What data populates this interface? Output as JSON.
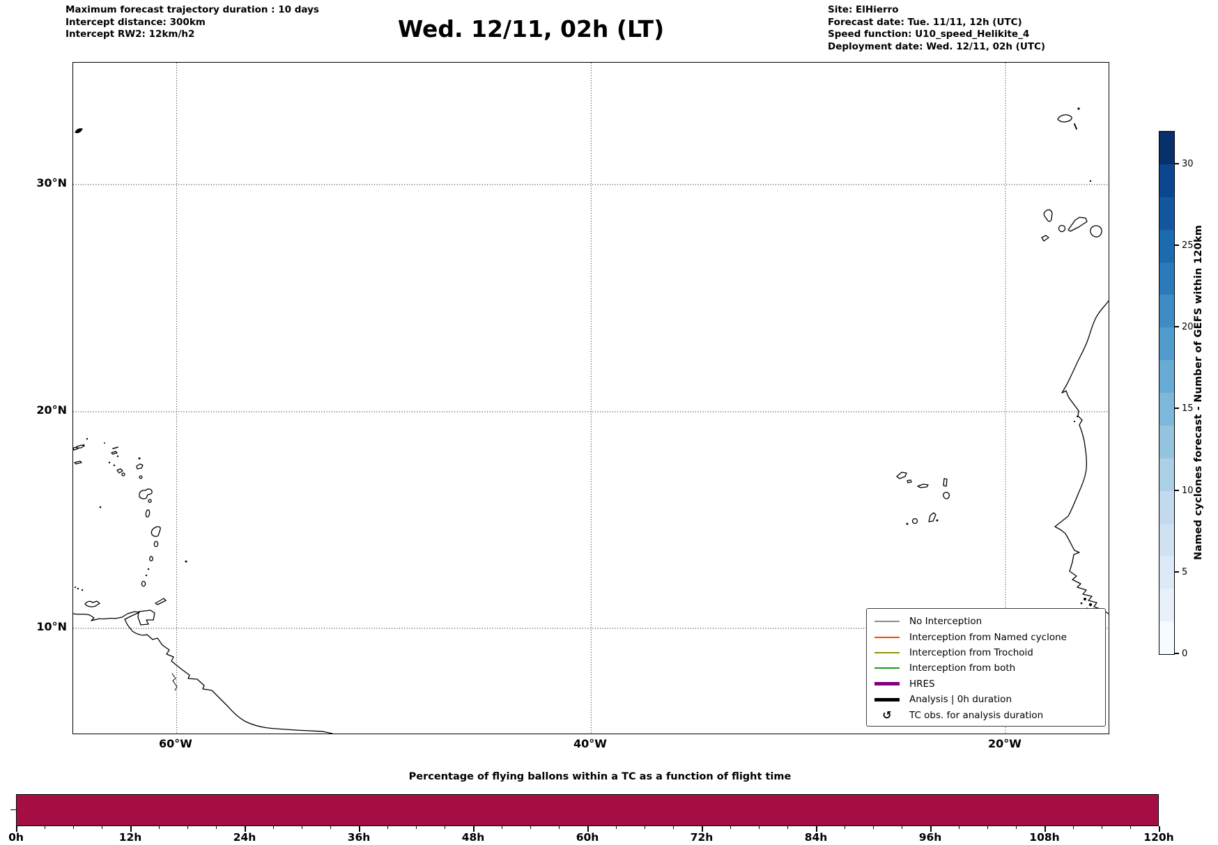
{
  "header": {
    "left": {
      "line1": "Maximum forecast trajectory duration : 10 days",
      "line2": "Intercept distance: 300km",
      "line3": "Intercept RW2: 12km/h2"
    },
    "title": "Wed. 12/11, 02h (LT)",
    "right": {
      "line1": "Site: ElHierro",
      "line2": "Forecast date: Tue. 11/11, 12h (UTC)",
      "line3": "Speed function: U10_speed_Helikite_4",
      "line4": "Deployment date: Wed. 12/11, 02h (UTC)"
    }
  },
  "map": {
    "lat_tick_labels": [
      "30°N",
      "20°N",
      "10°N"
    ],
    "lon_tick_labels": [
      "60°W",
      "40°W",
      "20°W"
    ],
    "legend_items": [
      {
        "label": "No Interception",
        "color": "#8a8a8a",
        "style": "thin-line"
      },
      {
        "label": "Interception from Named cyclone",
        "color": "#ff4500",
        "style": "thin-line"
      },
      {
        "label": "Interception from Trochoid",
        "color": "#949400",
        "style": "thin-line"
      },
      {
        "label": "Interception from both",
        "color": "#1a9a1a",
        "style": "thin-line"
      },
      {
        "label": "HRES",
        "color": "#800080",
        "style": "thick-line"
      },
      {
        "label": "Analysis | 0h duration",
        "color": "#000000",
        "style": "thick-line"
      },
      {
        "label": "TC obs. for analysis duration",
        "color": "#000000",
        "style": "symbol",
        "symbol": "↺"
      }
    ]
  },
  "colorbar": {
    "label": "Named cyclones forecast - Number of GEFS within 120km",
    "tick_labels": [
      "0",
      "5",
      "10",
      "15",
      "20",
      "25",
      "30"
    ],
    "tick_values": [
      0,
      5,
      10,
      15,
      20,
      25,
      30
    ],
    "min": 0,
    "max": 32,
    "colormap": "Blues",
    "segment_colors": [
      "#f7fbff",
      "#e8f1fa",
      "#dce9f6",
      "#d0e1f2",
      "#c2d9ee",
      "#abd0e6",
      "#94c4df",
      "#7db8da",
      "#68acd5",
      "#519ccc",
      "#3d8dc4",
      "#2b7bba",
      "#1c6ab0",
      "#12579f",
      "#0a4790",
      "#08306b"
    ]
  },
  "bottom_chart": {
    "title": "Percentage of flying ballons within a TC as a function of flight time",
    "bar_color": "#a50e44",
    "x_tick_labels": [
      "0h",
      "12h",
      "24h",
      "36h",
      "48h",
      "60h",
      "72h",
      "84h",
      "96h",
      "108h",
      "120h"
    ]
  },
  "chart_data": [
    {
      "type": "map",
      "title": "Wed. 12/11, 02h (LT)",
      "projection_region": "North Atlantic",
      "lon_range_deg": [
        -65,
        -15
      ],
      "lat_range_deg": [
        5,
        35
      ],
      "gridlines": {
        "lat": [
          10,
          20,
          30
        ],
        "lon": [
          -60,
          -40,
          -20
        ],
        "style": "dotted"
      },
      "visible_coastlines": [
        "Bermuda",
        "Madeira",
        "Selvagens",
        "Canary Islands",
        "Cape Verde",
        "Lesser Antilles",
        "Trinidad and Tobago",
        "Venezuela / Guyana coast",
        "West Africa coast"
      ],
      "plotted_trajectories": "none visible (0h duration)"
    },
    {
      "type": "bar",
      "title": "Percentage of flying ballons within a TC as a function of flight time",
      "x_unit": "hours",
      "x_range": [
        0,
        120
      ],
      "x_major_tick_step_h": 12,
      "x_minor_tick_step_h": 3,
      "constant_value_percent": 100,
      "bar_color": "#a50e44",
      "note": "single uniform full-width filled bar spanning 0h-120h"
    },
    {
      "type": "colorbar",
      "label": "Named cyclones forecast - Number of GEFS within 120km",
      "range": [
        0,
        32
      ],
      "ticks": [
        0,
        5,
        10,
        15,
        20,
        25,
        30
      ],
      "n_segments": 16,
      "colormap": "Blues",
      "orientation": "vertical",
      "position": "right"
    }
  ]
}
